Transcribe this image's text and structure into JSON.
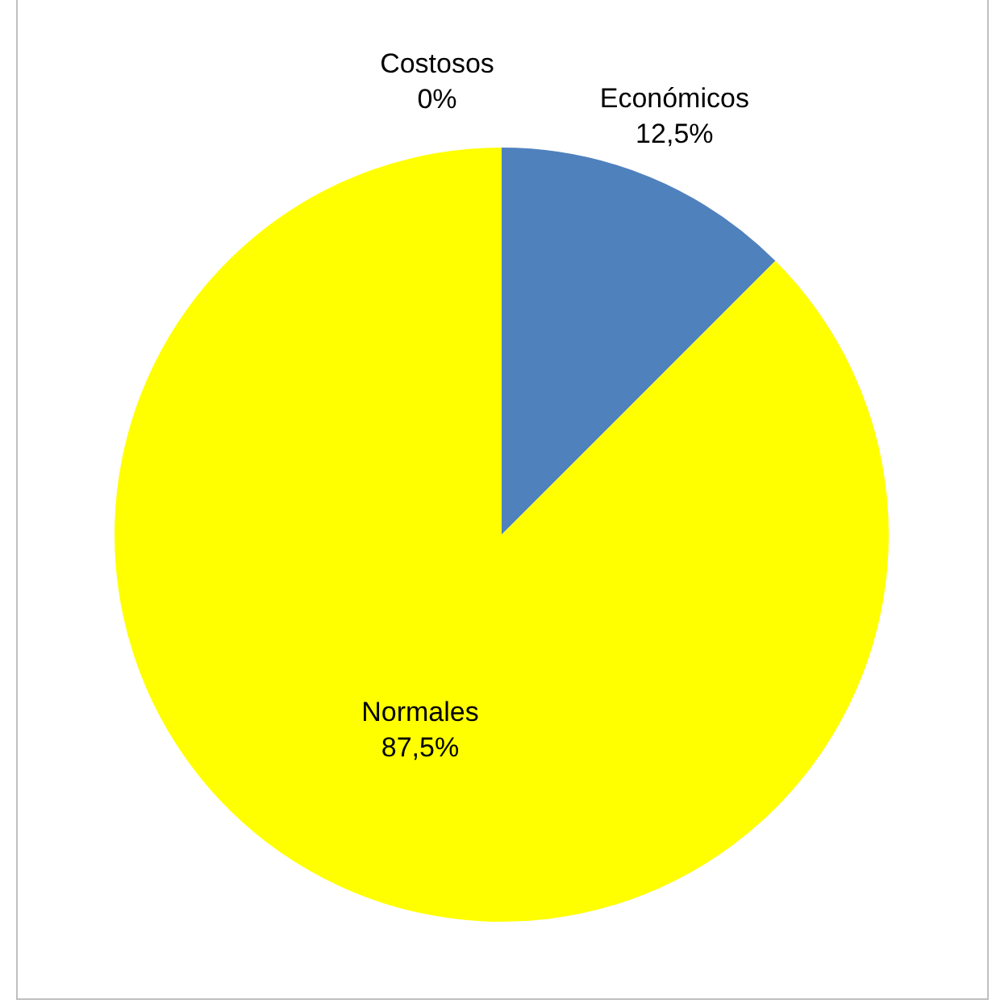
{
  "chart_data": {
    "type": "pie",
    "categories": [
      "Económicos",
      "Normales",
      "Costosos"
    ],
    "values": [
      12.5,
      87.5,
      0
    ],
    "colors": [
      "#4f81bd",
      "#ffff00",
      "#c0504d"
    ],
    "value_labels": [
      "12,5%",
      "87,5%",
      "0%"
    ],
    "legend": false
  }
}
